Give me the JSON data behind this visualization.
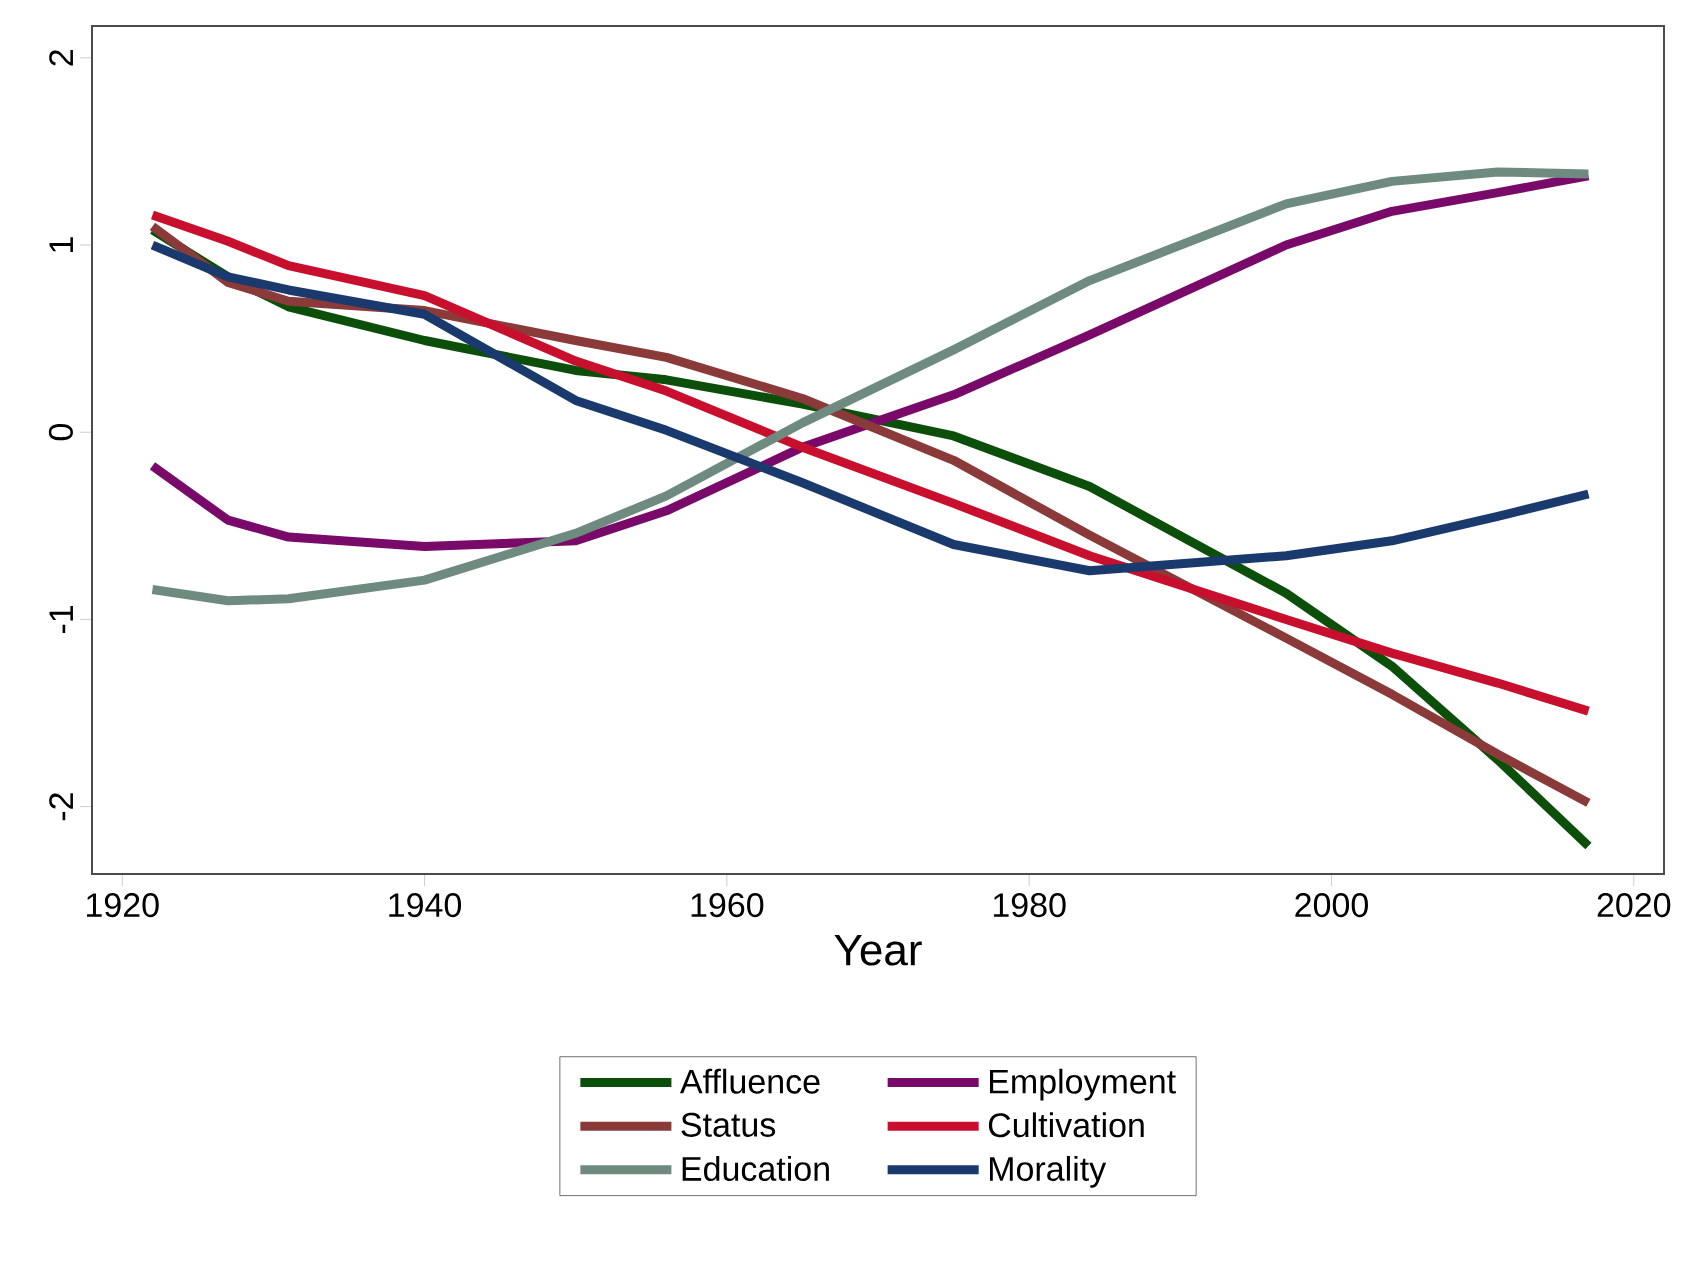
{
  "chart_data": {
    "type": "line",
    "xlabel": "Year",
    "x": [
      1922,
      1927,
      1931,
      1940,
      1950,
      1956,
      1965,
      1975,
      1984,
      1997,
      2004,
      2011,
      2017
    ],
    "series": [
      {
        "name": "Affluence",
        "color": "#0b4f0b",
        "values": [
          1.08,
          0.83,
          0.67,
          0.49,
          0.33,
          0.28,
          0.15,
          -0.02,
          -0.29,
          -0.86,
          -1.25,
          -1.75,
          -2.21
        ]
      },
      {
        "name": "Employment",
        "color": "#7a0a6a",
        "values": [
          -0.18,
          -0.47,
          -0.56,
          -0.61,
          -0.58,
          -0.42,
          -0.08,
          0.2,
          0.52,
          1.0,
          1.18,
          1.28,
          1.37
        ]
      },
      {
        "name": "Status",
        "color": "#8b3a3a",
        "values": [
          1.1,
          0.8,
          0.7,
          0.65,
          0.49,
          0.4,
          0.18,
          -0.15,
          -0.55,
          -1.1,
          -1.4,
          -1.72,
          -1.98
        ]
      },
      {
        "name": "Cultivation",
        "color": "#c8102e",
        "values": [
          1.16,
          1.02,
          0.89,
          0.73,
          0.38,
          0.22,
          -0.08,
          -0.38,
          -0.66,
          -1.0,
          -1.18,
          -1.34,
          -1.49
        ]
      },
      {
        "name": "Education",
        "color": "#6f8b80",
        "values": [
          -0.84,
          -0.9,
          -0.89,
          -0.79,
          -0.54,
          -0.34,
          0.05,
          0.44,
          0.81,
          1.22,
          1.34,
          1.39,
          1.38
        ]
      },
      {
        "name": "Morality",
        "color": "#1a3a6e",
        "values": [
          1.0,
          0.83,
          0.76,
          0.63,
          0.17,
          0.01,
          -0.27,
          -0.6,
          -0.74,
          -0.66,
          -0.58,
          -0.45,
          -0.33
        ]
      }
    ],
    "xlim": [
      1918,
      2022
    ],
    "ylim": [
      -2.36,
      2.17
    ],
    "xticks": [
      1920,
      1940,
      1960,
      1980,
      2000,
      2020
    ],
    "yticks": [
      -2,
      -1,
      0,
      1,
      2
    ],
    "grid": false,
    "legend": "bottom",
    "marker": "none",
    "line_style": "solid"
  }
}
